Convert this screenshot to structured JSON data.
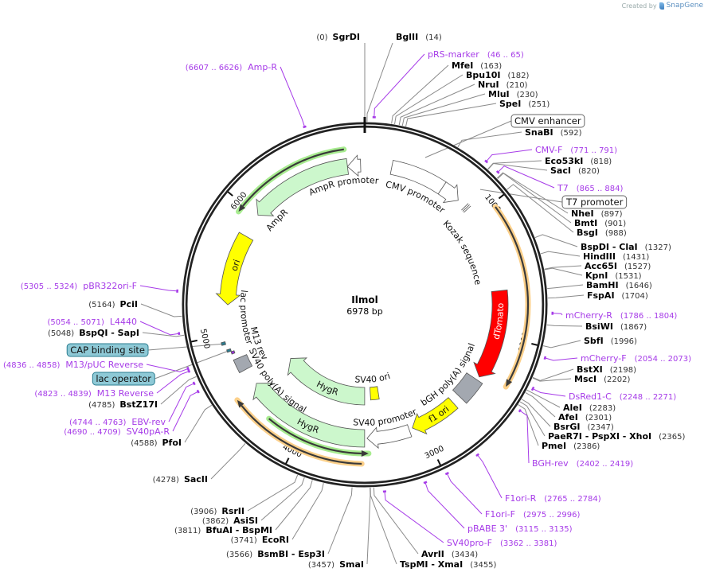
{
  "header": {
    "created_by": "Created by",
    "brand": "SnapGene"
  },
  "plasmid": {
    "name": "Ilmol",
    "length_label": "6978 bp",
    "length": 6978
  },
  "tick_labels": [
    {
      "bp": 1000,
      "label": "1000"
    },
    {
      "bp": 2000,
      "label": "2000"
    },
    {
      "bp": 3000,
      "label": "3000"
    },
    {
      "bp": 4000,
      "label": "4000"
    },
    {
      "bp": 5000,
      "label": "5000"
    },
    {
      "bp": 6000,
      "label": "6000"
    }
  ],
  "colors": {
    "enzyme_line": "#8a8a8a",
    "primer": "#a63be8",
    "ring": "#222222",
    "box_teal": "#8ec9d6",
    "box_teal_border": "#2b7d90"
  },
  "enzymes": [
    {
      "name": "SgrDI",
      "pos": 0
    },
    {
      "name": "BglII",
      "pos": 14
    },
    {
      "name": "MfeI",
      "pos": 163
    },
    {
      "name": "Bpu10I",
      "pos": 182
    },
    {
      "name": "NruI",
      "pos": 210
    },
    {
      "name": "MluI",
      "pos": 230
    },
    {
      "name": "SpeI",
      "pos": 251
    },
    {
      "name": "SnaBI",
      "pos": 592
    },
    {
      "name": "Eco53kI",
      "pos": 818
    },
    {
      "name": "SacI",
      "pos": 820
    },
    {
      "name": "NheI",
      "pos": 897
    },
    {
      "name": "BmtI",
      "pos": 901
    },
    {
      "name": "BsgI",
      "pos": 988
    },
    {
      "name": "BspDI   - ClaI",
      "pos": 1327
    },
    {
      "name": "HindIII",
      "pos": 1431
    },
    {
      "name": "Acc65I",
      "pos": 1527
    },
    {
      "name": "KpnI",
      "pos": 1531
    },
    {
      "name": "BamHI",
      "pos": 1646
    },
    {
      "name": "FspAI",
      "pos": 1704
    },
    {
      "name": "BsiWI",
      "pos": 1867
    },
    {
      "name": "SbfI",
      "pos": 1996
    },
    {
      "name": "BstXI",
      "pos": 2198
    },
    {
      "name": "MscI",
      "pos": 2202
    },
    {
      "name": "AleI",
      "pos": 2283
    },
    {
      "name": "AfeI",
      "pos": 2301
    },
    {
      "name": "BsrGI",
      "pos": 2347
    },
    {
      "name": "PaeR7I   - PspXI   - XhoI",
      "pos": 2365
    },
    {
      "name": "PmeI",
      "pos": 2386
    },
    {
      "name": "AvrII",
      "pos": 3434
    },
    {
      "name": "TspMI   - XmaI",
      "pos": 3455
    },
    {
      "name": "SmaI",
      "pos": 3457
    },
    {
      "name": "BsmBI   - Esp3I",
      "pos": 3566
    },
    {
      "name": "EcoRI",
      "pos": 3741
    },
    {
      "name": "BfuAI   - BspMI",
      "pos": 3811
    },
    {
      "name": "AsiSI",
      "pos": 3862
    },
    {
      "name": "RsrII",
      "pos": 3906
    },
    {
      "name": "SacII",
      "pos": 4278
    },
    {
      "name": "PfoI",
      "pos": 4588
    },
    {
      "name": "BstZ17I",
      "pos": 4785
    },
    {
      "name": "BspQI   - SapI",
      "pos": 5048
    },
    {
      "name": "PciI",
      "pos": 5164
    }
  ],
  "primers": [
    {
      "name": "pRS-marker",
      "range": "(46 .. 65)",
      "start": 46,
      "end": 65
    },
    {
      "name": "CMV-F",
      "range": "(771 .. 791)",
      "start": 771,
      "end": 791
    },
    {
      "name": "T7",
      "range": "(865 .. 884)",
      "start": 865,
      "end": 884
    },
    {
      "name": "mCherry-R",
      "range": "(1786 .. 1804)",
      "start": 1786,
      "end": 1804
    },
    {
      "name": "mCherry-F",
      "range": "(2054 .. 2073)",
      "start": 2054,
      "end": 2073
    },
    {
      "name": "DsRed1-C",
      "range": "(2248 .. 2271)",
      "start": 2248,
      "end": 2271
    },
    {
      "name": "BGH-rev",
      "range": "(2402 .. 2419)",
      "start": 2402,
      "end": 2419
    },
    {
      "name": "F1ori-R",
      "range": "(2765 .. 2784)",
      "start": 2765,
      "end": 2784
    },
    {
      "name": "F1ori-F",
      "range": "(2975 .. 2996)",
      "start": 2975,
      "end": 2996
    },
    {
      "name": "pBABE 3'",
      "range": "(3115 .. 3135)",
      "start": 3115,
      "end": 3135
    },
    {
      "name": "SV40pro-F",
      "range": "(3362 .. 3381)",
      "start": 3362,
      "end": 3381
    },
    {
      "name": "SV40pA-R",
      "range": "(4690 .. 4709)",
      "start": 4690,
      "end": 4709
    },
    {
      "name": "EBV-rev",
      "range": "(4744 .. 4763)",
      "start": 4744,
      "end": 4763
    },
    {
      "name": "M13 Reverse",
      "range": "(4823 .. 4839)",
      "start": 4823,
      "end": 4839
    },
    {
      "name": "M13/pUC Reverse",
      "range": "(4836 .. 4858)",
      "start": 4836,
      "end": 4858
    },
    {
      "name": "L4440",
      "range": "(5054 .. 5071)",
      "start": 5054,
      "end": 5071
    },
    {
      "name": "pBR322ori-F",
      "range": "(5305 .. 5324)",
      "start": 5305,
      "end": 5324
    },
    {
      "name": "Amp-R",
      "range": "(6607 .. 6626)",
      "start": 6607,
      "end": 6626
    }
  ],
  "features": [
    {
      "name": "CMV enhancer",
      "start": 215,
      "end": 650,
      "dir": 0,
      "color": "#ffffff"
    },
    {
      "name": "CMV promoter",
      "start": 650,
      "end": 810,
      "dir": 1,
      "color": "#ffffff"
    },
    {
      "name": "T7 promoter",
      "start": 863,
      "end": 882,
      "dir": 1,
      "color": "#ffffff"
    },
    {
      "name": "Kozak sequence",
      "start": 884,
      "end": 893,
      "dir": 0,
      "color": "#ffffff"
    },
    {
      "name": "dTomato",
      "start": 1630,
      "end": 2370,
      "dir": 1,
      "color": "#ff0000"
    },
    {
      "name": "bGH poly(A) signal",
      "start": 2400,
      "end": 2600,
      "dir": 0,
      "color": "#a3a8b0"
    },
    {
      "name": "f1 ori",
      "start": 2675,
      "end": 3080,
      "dir": 1,
      "color": "#ffff00"
    },
    {
      "name": "SV40 promoter",
      "start": 3110,
      "end": 3470,
      "dir": 1,
      "color": "#ffffff"
    },
    {
      "name": "SV40 ori",
      "start": 3320,
      "end": 3420,
      "dir": 0,
      "color": "#ffff00"
    },
    {
      "name": "HygR",
      "start": 3490,
      "end": 4536,
      "dir": 1,
      "color": "#ccf7cc"
    },
    {
      "name": "HygR",
      "start": 3490,
      "end": 4536,
      "dir": 1,
      "color": "#ccf7cc"
    },
    {
      "name": "SV40 poly(A) signal",
      "start": 4680,
      "end": 4790,
      "dir": 0,
      "color": "#a3a8b0"
    },
    {
      "name": "M13 rev",
      "start": 4838,
      "end": 4855,
      "dir": 0,
      "color": "#9b30e0"
    },
    {
      "name": "lac operator",
      "start": 4862,
      "end": 4878,
      "dir": 0,
      "color": "#2b7d90"
    },
    {
      "name": "lac promoter",
      "start": 4880,
      "end": 4910,
      "dir": 0,
      "color": "#ffffff"
    },
    {
      "name": "CAP binding site",
      "start": 4924,
      "end": 4946,
      "dir": 0,
      "color": "#2b7d90"
    },
    {
      "name": "ori",
      "start": 5233,
      "end": 5815,
      "dir": -1,
      "color": "#ffff00"
    },
    {
      "name": "AmpR",
      "start": 6009,
      "end": 6840,
      "dir": -1,
      "color": "#ccf7cc"
    },
    {
      "name": "AmpR promoter",
      "start": 6840,
      "end": 6945,
      "dir": -1,
      "color": "#ffffff"
    }
  ],
  "translations": [
    {
      "start": 1030,
      "end": 2330,
      "dir": 1,
      "glow": "#fcd08a"
    },
    {
      "start": 3510,
      "end": 4520,
      "dir": 1,
      "glow": "#fcd08a"
    },
    {
      "start": 3460,
      "end": 4265,
      "dir": -1,
      "glow": "#a8ec90"
    },
    {
      "start": 5940,
      "end": 6830,
      "dir": -1,
      "glow": "#a8ec90"
    }
  ]
}
